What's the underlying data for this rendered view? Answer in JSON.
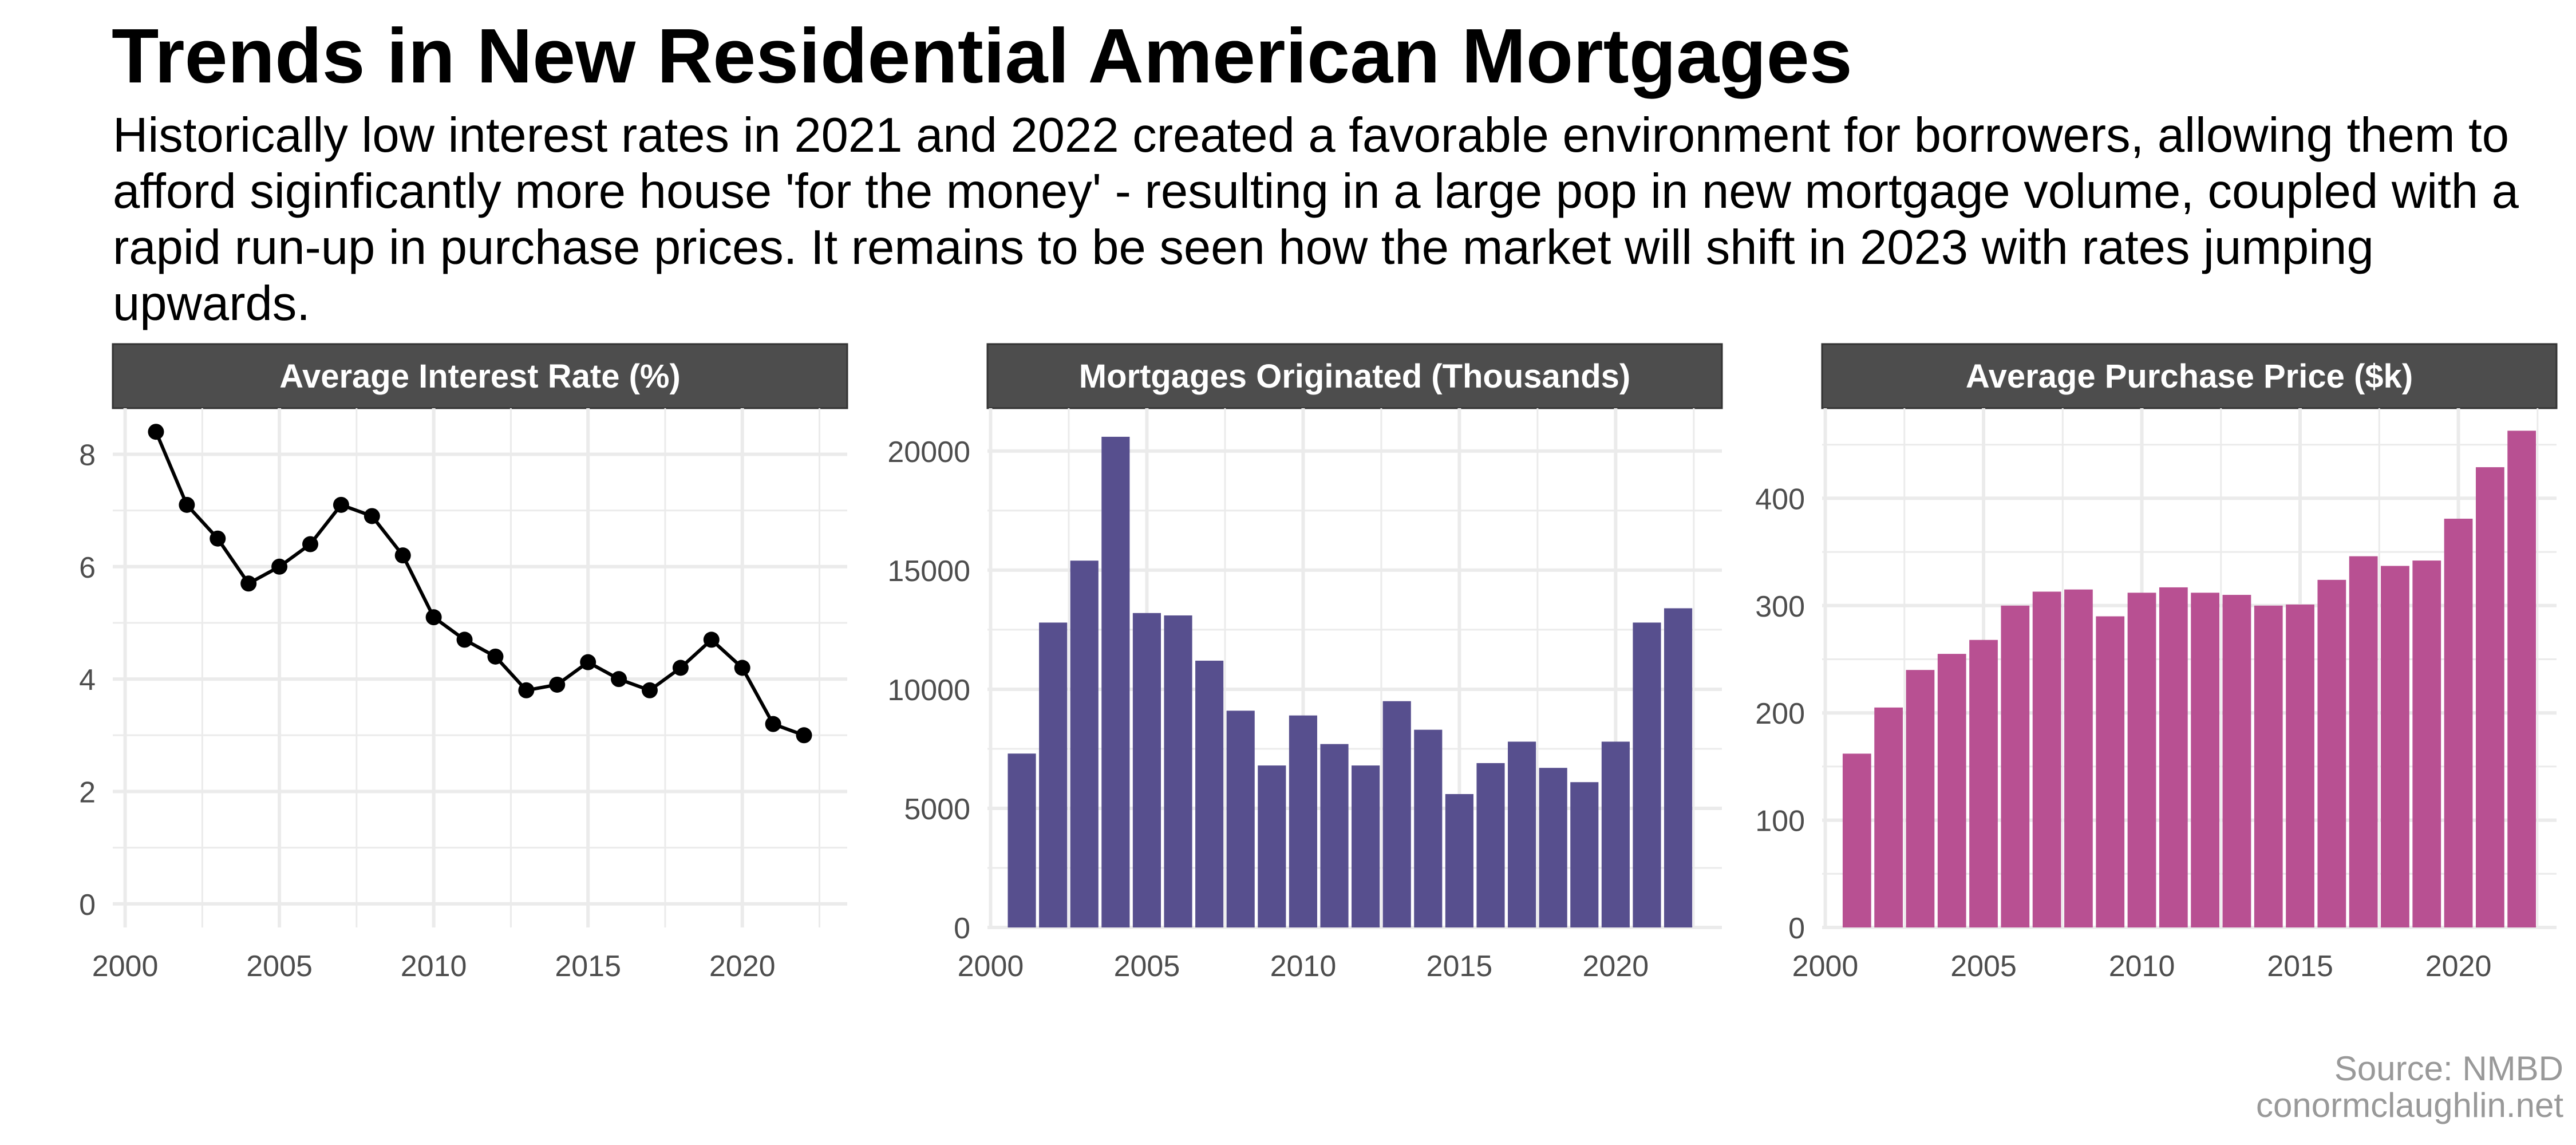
{
  "title": "Trends in New Residential American Mortgages",
  "subtitle": "Historically low interest rates in 2021 and 2022 created a favorable environment for borrowers, allowing them to afford siginficantly more house 'for the money' - resulting in a large pop in new mortgage volume, coupled with a rapid run-up in purchase prices. It remains to be seen how the market will shift in 2023 with rates jumping upwards.",
  "caption": {
    "source": "Source: NMBD",
    "site": "conormclaughlin.net"
  },
  "colors": {
    "strip_bg": "#4d4d4d",
    "strip_text": "#ffffff",
    "grid": "#ebebeb",
    "axis_text": "#4d4d4d",
    "line": "#000000",
    "bar_mortgages": "#574f8e",
    "bar_price": "#b85092"
  },
  "chart_data": [
    {
      "type": "line",
      "title": "Average Interest Rate (%)",
      "x": [
        2001,
        2002,
        2003,
        2004,
        2005,
        2006,
        2007,
        2008,
        2009,
        2010,
        2011,
        2012,
        2013,
        2014,
        2015,
        2016,
        2017,
        2018,
        2019,
        2020,
        2021,
        2022
      ],
      "values": [
        8.4,
        7.1,
        6.5,
        5.7,
        6.0,
        6.4,
        7.1,
        6.9,
        6.2,
        5.1,
        4.7,
        4.4,
        3.8,
        3.9,
        4.3,
        4.0,
        3.8,
        4.2,
        4.7,
        4.2,
        3.2,
        3.0
      ],
      "xlim": [
        1999.6,
        2023.4
      ],
      "ylim": [
        -0.42,
        8.82
      ],
      "xticks": [
        2000,
        2005,
        2010,
        2015,
        2020
      ],
      "yticks": [
        0,
        2,
        4,
        6,
        8
      ],
      "grid": true
    },
    {
      "type": "bar",
      "title": "Mortgages Originated (Thousands)",
      "x": [
        2001,
        2002,
        2003,
        2004,
        2005,
        2006,
        2007,
        2008,
        2009,
        2010,
        2011,
        2012,
        2013,
        2014,
        2015,
        2016,
        2017,
        2018,
        2019,
        2020,
        2021,
        2022
      ],
      "values": [
        7300,
        12800,
        15400,
        20600,
        13200,
        13100,
        11200,
        9100,
        6800,
        8900,
        7700,
        6800,
        9500,
        8300,
        5600,
        6900,
        7800,
        6700,
        6100,
        7800,
        12800,
        13400
      ],
      "xlim": [
        1999.9,
        2023.4
      ],
      "ylim": [
        0,
        21800
      ],
      "xticks": [
        2000,
        2005,
        2010,
        2015,
        2020
      ],
      "yticks": [
        0,
        5000,
        10000,
        15000,
        20000
      ],
      "grid": true
    },
    {
      "type": "bar",
      "title": "Average Purchase Price ($k)",
      "x": [
        2001,
        2002,
        2003,
        2004,
        2005,
        2006,
        2007,
        2008,
        2009,
        2010,
        2011,
        2012,
        2013,
        2014,
        2015,
        2016,
        2017,
        2018,
        2019,
        2020,
        2021,
        2022
      ],
      "values": [
        162,
        205,
        240,
        255,
        268,
        300,
        313,
        315,
        290,
        312,
        317,
        312,
        310,
        300,
        301,
        324,
        346,
        337,
        342,
        381,
        429,
        463
      ],
      "xlim": [
        1999.9,
        2023.1
      ],
      "ylim": [
        0,
        484
      ],
      "xticks": [
        2000,
        2005,
        2010,
        2015,
        2020
      ],
      "yticks": [
        0,
        100,
        200,
        300,
        400
      ],
      "grid": true
    }
  ]
}
